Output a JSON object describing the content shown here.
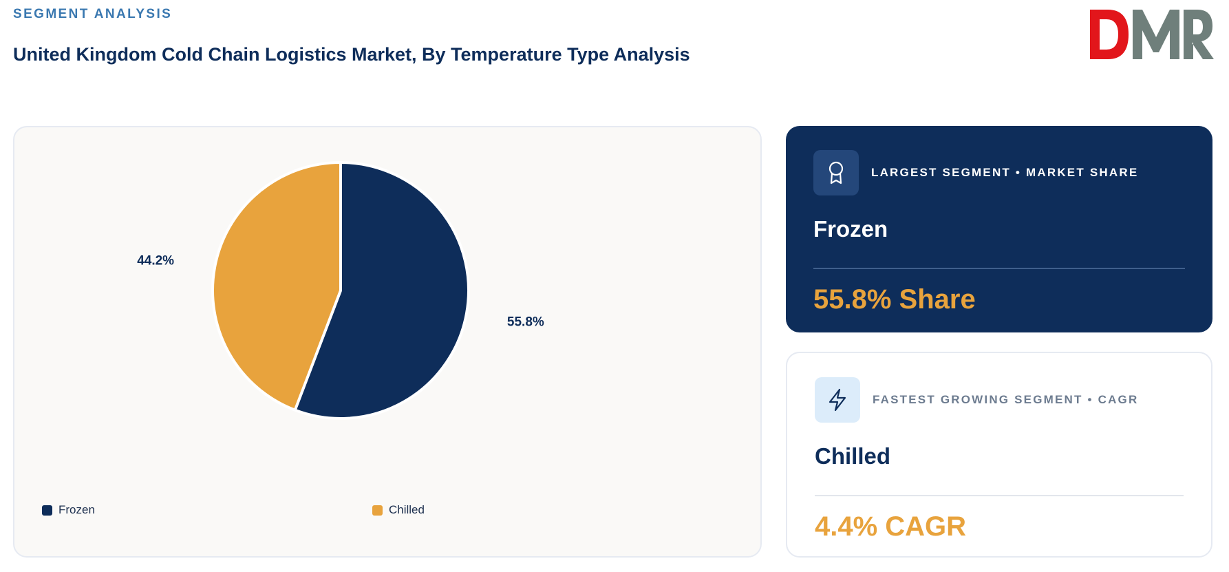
{
  "header": {
    "eyebrow": "SEGMENT ANALYSIS",
    "title": "United Kingdom Cold Chain Logistics Market, By Temperature Type Analysis"
  },
  "logo": {
    "text": "DMR",
    "colors": {
      "d": "#e2161b",
      "m": "#6f7f7b",
      "r": "#6f7f7b"
    }
  },
  "chart_data": {
    "type": "pie",
    "categories": [
      "Frozen",
      "Chilled"
    ],
    "values": [
      55.8,
      44.2
    ],
    "labels": [
      "55.8%",
      "44.2%"
    ],
    "colors": [
      "#0e2d5a",
      "#e8a33d"
    ],
    "legend_position": "bottom"
  },
  "cards": {
    "largest": {
      "label": "LARGEST SEGMENT • MARKET SHARE",
      "segment": "Frozen",
      "metric": "55.8% Share",
      "icon": "award-icon"
    },
    "fastest": {
      "label": "FASTEST GROWING SEGMENT • CAGR",
      "segment": "Chilled",
      "metric": "4.4% CAGR",
      "icon": "lightning-icon"
    }
  }
}
